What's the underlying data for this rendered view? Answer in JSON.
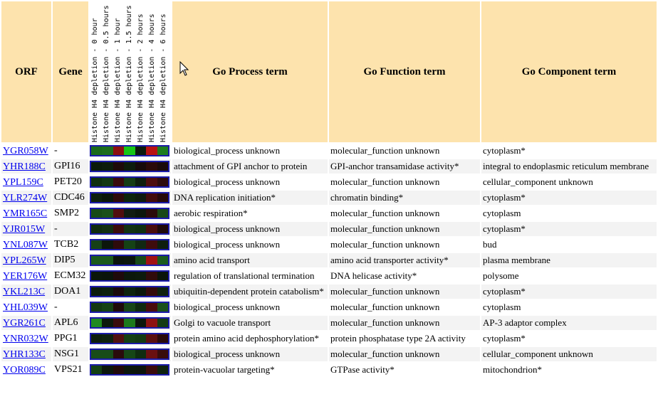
{
  "headers": {
    "orf": "ORF",
    "gene": "Gene",
    "process": "Go Process term",
    "function": "Go Function term",
    "component": "Go Component term"
  },
  "conditions": [
    "Histone H4 depletion - 0 hour",
    "Histone H4 depletion - 0.5 hours",
    "Histone H4 depletion - 1 hour",
    "Histone H4 depletion - 1.5 hours",
    "Histone H4 depletion - 2 hours",
    "Histone H4 depletion - 4 hours",
    "Histone H4 depletion - 6 hours"
  ],
  "rows": [
    {
      "orf": "YGR058W",
      "gene": "-",
      "process": "biological_process unknown",
      "function": "molecular_function unknown",
      "component": "cytoplasm*",
      "heat": [
        "#1a6a1a",
        "#1d6d1d",
        "#8b1010",
        "#16c516",
        "#0d1a0d",
        "#b81212",
        "#1e7d1e"
      ]
    },
    {
      "orf": "YHR188C",
      "gene": "GPI16",
      "process": "attachment of GPI anchor to protein",
      "function": "GPI-anchor transamidase activity*",
      "component": "integral to endoplasmic reticulum membrane",
      "heat": [
        "#0a1a0a",
        "#0c1d0c",
        "#1d0a0a",
        "#0c1c0c",
        "#160a0a",
        "#2a0a0a",
        "#1a0a0a"
      ]
    },
    {
      "orf": "YPL159C",
      "gene": "PET20",
      "process": "biological_process unknown",
      "function": "molecular_function unknown",
      "component": "cellular_component unknown",
      "heat": [
        "#0f2f0f",
        "#133813",
        "#3a0c0c",
        "#163c16",
        "#0e1e0e",
        "#4d0e0e",
        "#2e0c0c"
      ]
    },
    {
      "orf": "YLR274W",
      "gene": "CDC46",
      "process": "DNA replication initiation*",
      "function": "chromatin binding*",
      "component": "cytoplasm*",
      "heat": [
        "#0c1f0c",
        "#0a160a",
        "#2d0a0a",
        "#0c240c",
        "#0e1a0e",
        "#420c0c",
        "#250a0a"
      ]
    },
    {
      "orf": "YMR165C",
      "gene": "SMP2",
      "process": "aerobic respiration*",
      "function": "molecular_function unknown",
      "component": "cytoplasm",
      "heat": [
        "#174a17",
        "#1a501a",
        "#500e0e",
        "#111c11",
        "#0c160c",
        "#2a0b0b",
        "#184818"
      ]
    },
    {
      "orf": "YJR015W",
      "gene": "-",
      "process": "biological_process unknown",
      "function": "molecular_function unknown",
      "component": "cytoplasm*",
      "heat": [
        "#0f2a0f",
        "#122f12",
        "#3a0c0c",
        "#133313",
        "#103010",
        "#4a0e0e",
        "#1f0a0a"
      ]
    },
    {
      "orf": "YNL087W",
      "gene": "TCB2",
      "process": "biological_process unknown",
      "function": "molecular_function unknown",
      "component": "bud",
      "heat": [
        "#164016",
        "#0c160c",
        "#2e0b0b",
        "#154215",
        "#112811",
        "#3e0c0c",
        "#0e1e0e"
      ]
    },
    {
      "orf": "YPL265W",
      "gene": "DIP5",
      "process": "amino acid transport",
      "function": "amino acid transporter activity*",
      "component": "plasma membrane",
      "heat": [
        "#1b5a1b",
        "#1b5a1b",
        "#0b140b",
        "#0c160c",
        "#184a18",
        "#a11212",
        "#1c5c1c"
      ]
    },
    {
      "orf": "YER176W",
      "gene": "ECM32",
      "process": "regulation of translational termination",
      "function": "DNA helicase activity*",
      "component": "polysome",
      "heat": [
        "#0a160a",
        "#0a140a",
        "#1e0a0a",
        "#0b180b",
        "#0c1a0c",
        "#300b0b",
        "#0a140a"
      ]
    },
    {
      "orf": "YKL213C",
      "gene": "DOA1",
      "process": "ubiquitin-dependent protein catabolism*",
      "function": "molecular_function unknown",
      "component": "cytoplasm*",
      "heat": [
        "#0c1c0c",
        "#0d200d",
        "#1a0a0a",
        "#0e240e",
        "#0b180b",
        "#330b0b",
        "#0e220e"
      ]
    },
    {
      "orf": "YHL039W",
      "gene": "-",
      "process": "biological_process unknown",
      "function": "molecular_function unknown",
      "component": "cytoplasm",
      "heat": [
        "#123812",
        "#154215",
        "#1f0a0a",
        "#174617",
        "#0f2a0f",
        "#4a0d0d",
        "#1a501a"
      ]
    },
    {
      "orf": "YGR261C",
      "gene": "APL6",
      "process": "Golgi to vacuole transport",
      "function": "molecular_function unknown",
      "component": "AP-3 adaptor complex",
      "heat": [
        "#1f8a1f",
        "#0c1a0c",
        "#3a0c0c",
        "#1c7a1c",
        "#0c160c",
        "#8c1212",
        "#143c14"
      ]
    },
    {
      "orf": "YNR032W",
      "gene": "PPG1",
      "process": "protein amino acid dephosphorylation*",
      "function": "protein phosphatase type 2A activity",
      "component": "cytoplasm*",
      "heat": [
        "#0c1c0c",
        "#0e200e",
        "#501010",
        "#144014",
        "#133a13",
        "#5a1010",
        "#2a0b0b"
      ]
    },
    {
      "orf": "YHR133C",
      "gene": "NSG1",
      "process": "biological_process unknown",
      "function": "molecular_function unknown",
      "component": "cellular_component unknown",
      "heat": [
        "#184c18",
        "#184c18",
        "#2a0b0b",
        "#164616",
        "#0f2c0f",
        "#6a1010",
        "#380c0c"
      ]
    },
    {
      "orf": "YOR089C",
      "gene": "VPS21",
      "process": "protein-vacuolar targeting*",
      "function": "GTPase activity*",
      "component": "mitochondrion*",
      "heat": [
        "#134013",
        "#0c180c",
        "#200a0a",
        "#0b160b",
        "#0c140c",
        "#3a0c0c",
        "#0e220e"
      ]
    }
  ]
}
